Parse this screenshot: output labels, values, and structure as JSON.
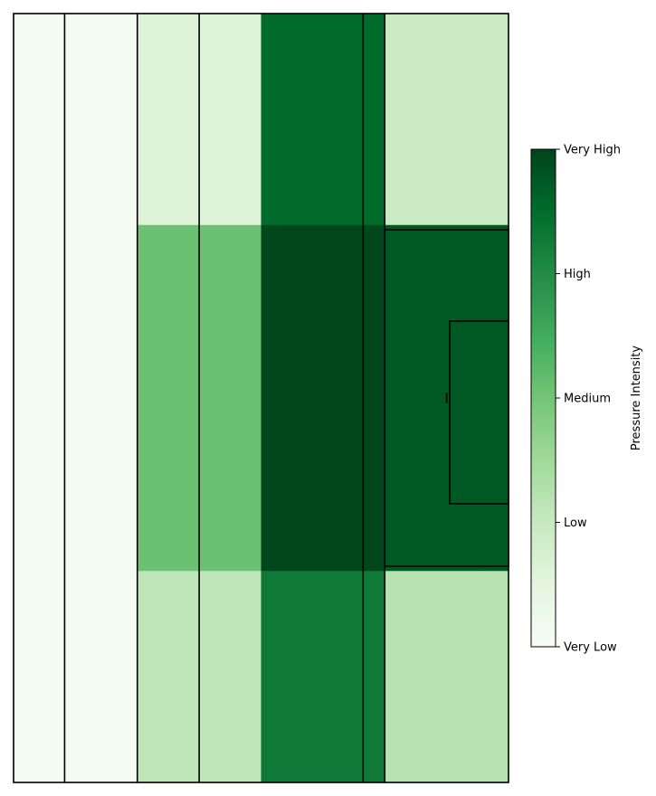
{
  "chart_data": {
    "type": "heatmap",
    "title": "",
    "xlabel": "",
    "ylabel": "",
    "colormap": "Greens",
    "x_edges": [
      0,
      16.5,
      40,
      60,
      80,
      113,
      120,
      150,
      160
    ],
    "y_edges": [
      0,
      22,
      58,
      80
    ],
    "values": [
      [
        0.02,
        0.02,
        0.16,
        0.16,
        0.88,
        0.88,
        0.24,
        0.24
      ],
      [
        0.02,
        0.02,
        0.52,
        0.52,
        0.99,
        0.99,
        0.94,
        0.94
      ],
      [
        0.02,
        0.02,
        0.28,
        0.28,
        0.82,
        0.82,
        0.3,
        0.3
      ]
    ],
    "xlim": [
      0,
      160
    ],
    "ylim": [
      0,
      80
    ],
    "pitch_lines": {
      "verticals": [
        16.5,
        40,
        60,
        113,
        120
      ],
      "penalty_box": {
        "x0": 120,
        "x1": 160,
        "y0": 22.5,
        "y1": 57.5
      },
      "six_yard_box": {
        "x0": 141,
        "x1": 160,
        "y0": 32,
        "y1": 51
      },
      "penalty_spot": {
        "x": 140,
        "y": 40
      }
    },
    "colorbar": {
      "label": "Pressure Intensity",
      "ticks": [
        {
          "value": 0.0,
          "label": "Very Low"
        },
        {
          "value": 0.25,
          "label": "Low"
        },
        {
          "value": 0.5,
          "label": "Medium"
        },
        {
          "value": 0.75,
          "label": "High"
        },
        {
          "value": 1.0,
          "label": "Very High"
        }
      ]
    }
  }
}
